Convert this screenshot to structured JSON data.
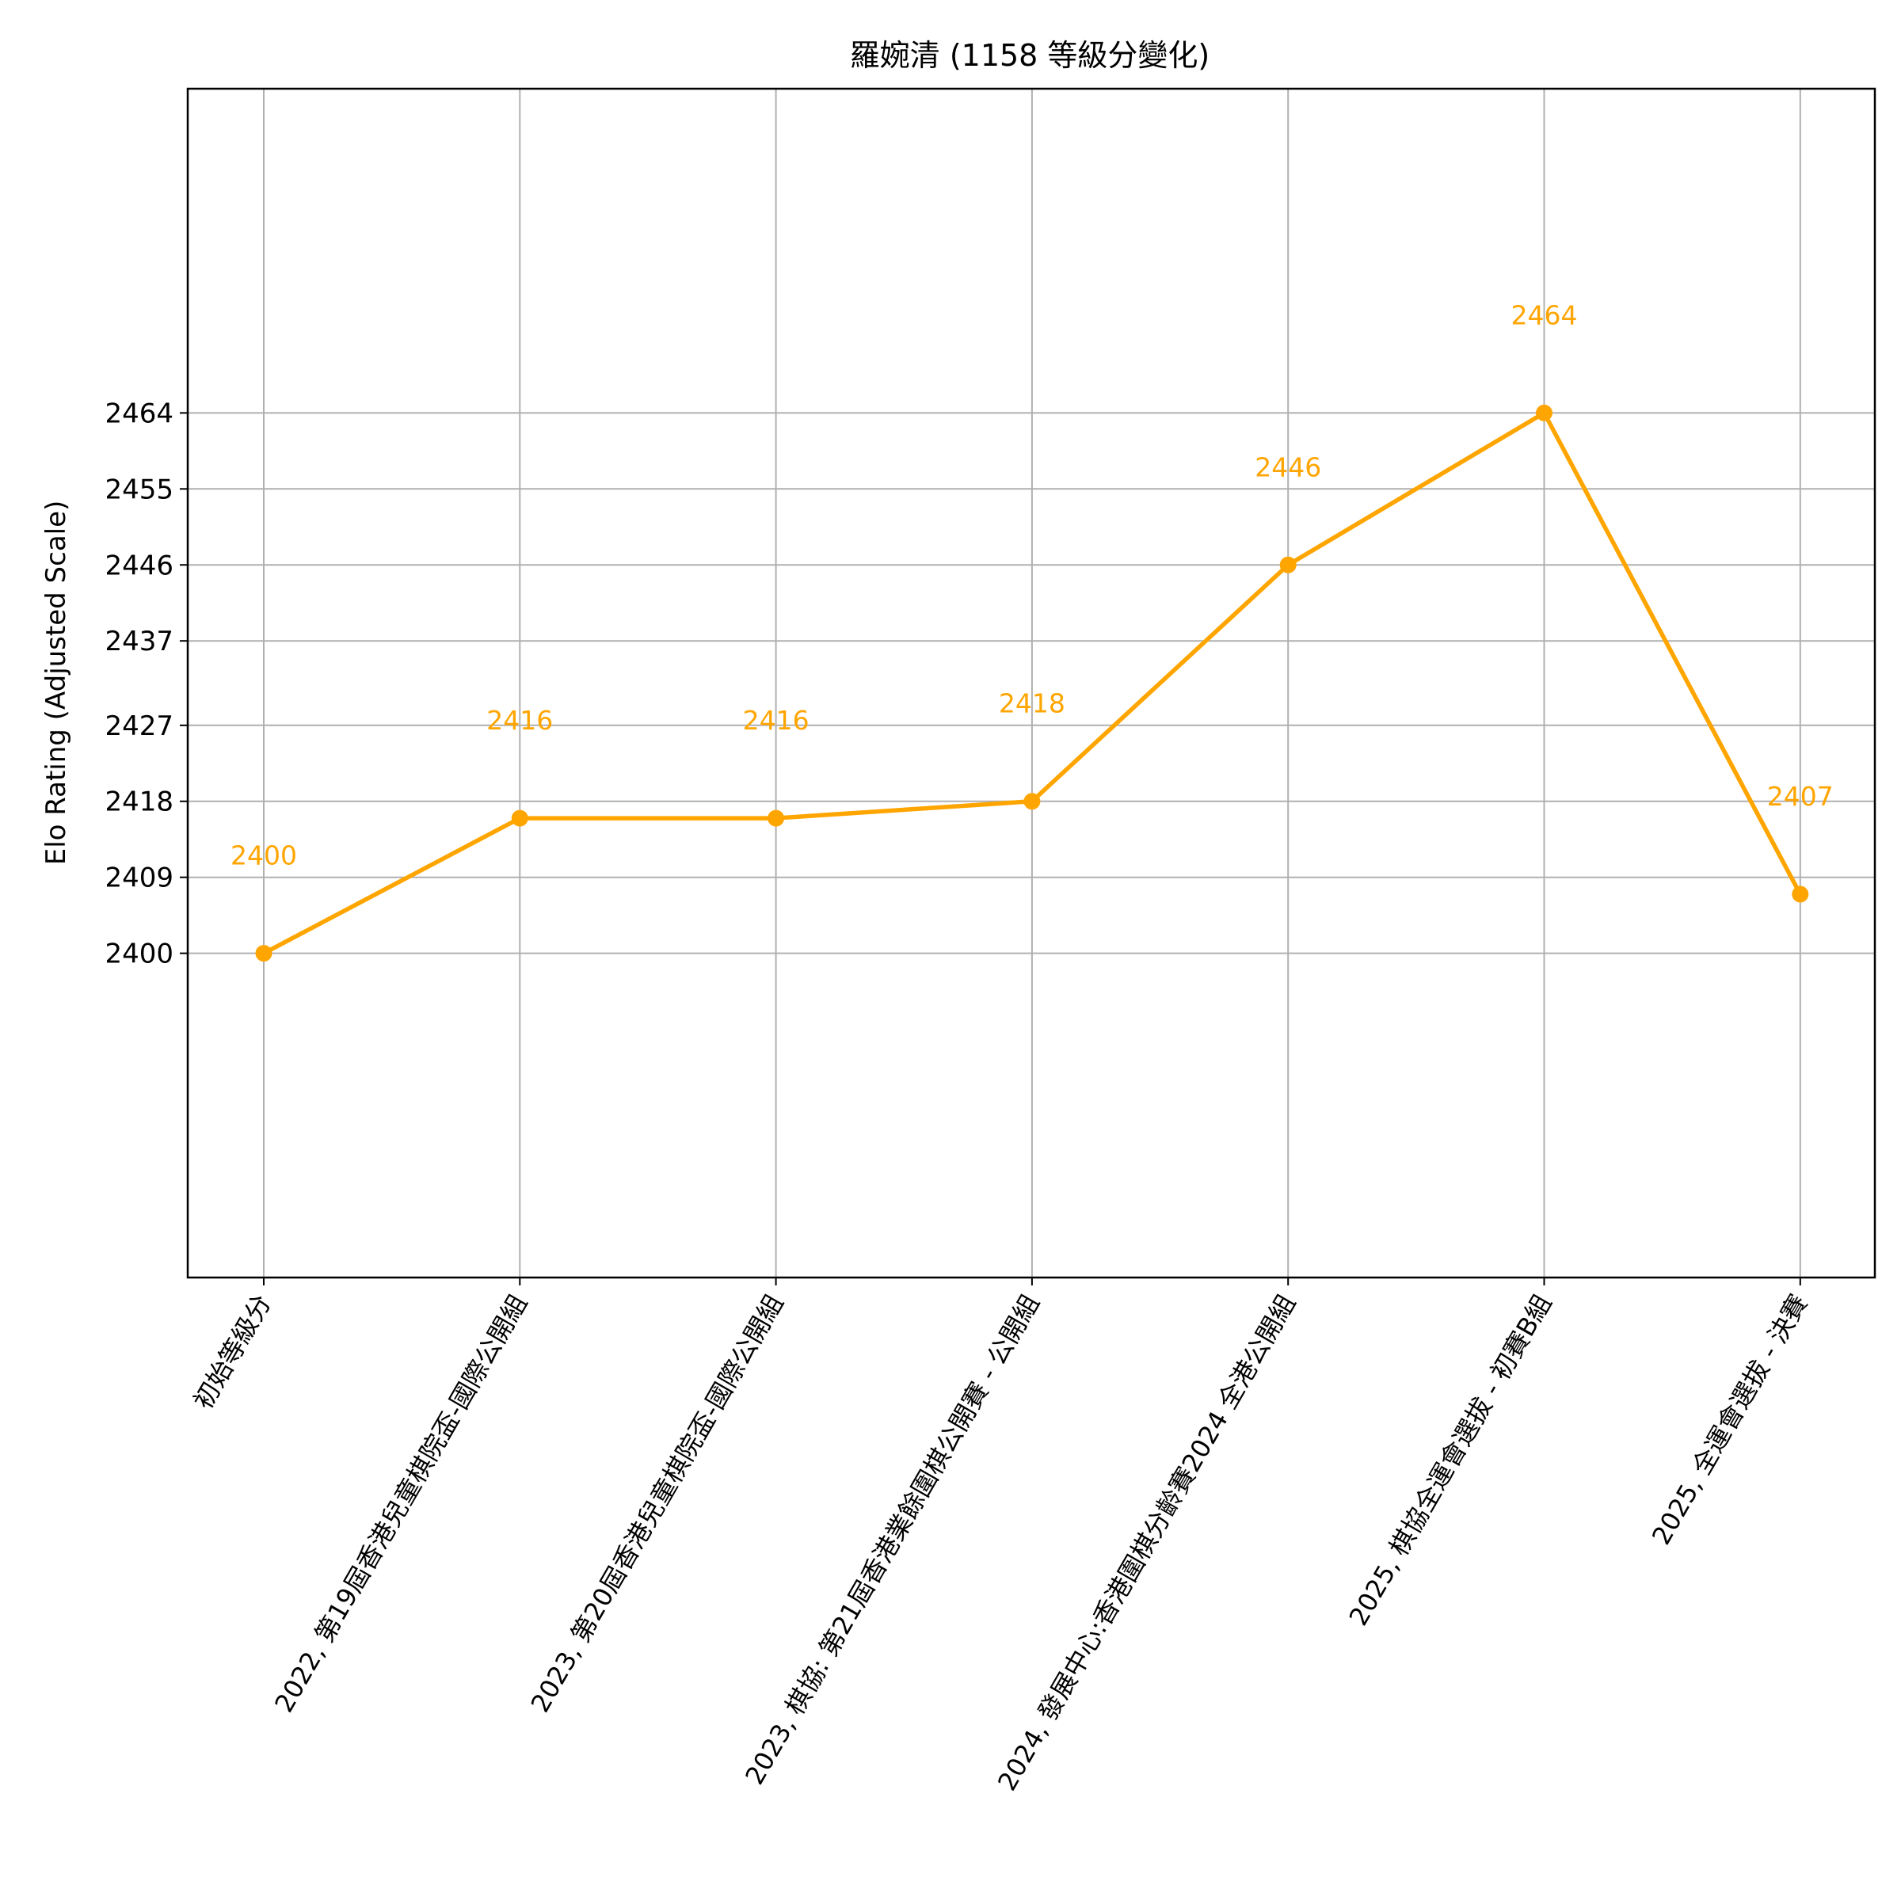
{
  "chart_data": {
    "type": "line",
    "title": "羅婉清 (1158 等級分變化)",
    "xlabel": "",
    "ylabel": "Elo Rating (Adjusted Scale)",
    "categories": [
      "初始等級分",
      "2022, 第19屆香港兒童棋院盃-國際公開組",
      "2023, 第20屆香港兒童棋院盃-國際公開組",
      "2023, 棋協: 第21屆香港業餘圍棋公開賽 - 公開組",
      "2024, 發展中心:香港圍棋分齡賽2024 全港公開組",
      "2025, 棋協全運會選拔 - 初賽B組",
      "2025, 全運會選拔 - 決賽"
    ],
    "values": [
      2400,
      2416,
      2416,
      2418,
      2446,
      2464,
      2407
    ],
    "value_labels": [
      "2400",
      "2416",
      "2416",
      "2418",
      "2446",
      "2464",
      "2407"
    ],
    "yticks": [
      "2400",
      "2409",
      "2418",
      "2427",
      "2437",
      "2446",
      "2455",
      "2464"
    ],
    "ylim": [
      2361.6,
      2502.4
    ],
    "grid": true,
    "markers": true,
    "color": "#FFA500"
  }
}
